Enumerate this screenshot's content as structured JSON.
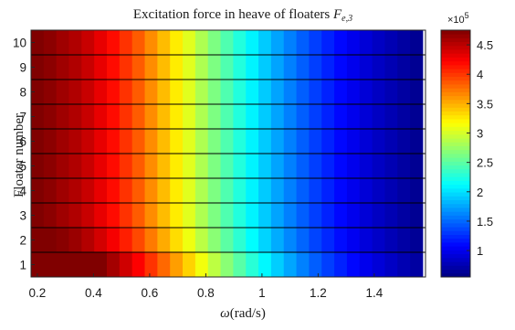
{
  "chart_data": {
    "type": "heatmap",
    "title": "Excitation force in heave of floaters",
    "title_symbol": "F",
    "title_symbol_sub": "e,3",
    "xlabel_symbol": "ω",
    "xlabel_unit": "(rad/s)",
    "ylabel": "Floater number",
    "x_range": [
      0.1775,
      1.5825
    ],
    "x_ticks": [
      0.2,
      0.4,
      0.6,
      0.8,
      1,
      1.2,
      1.4
    ],
    "x_tick_labels": [
      "0.2",
      "0.4",
      "0.6",
      "0.8",
      "1",
      "1.2",
      "1.4"
    ],
    "y_categories": [
      "1",
      "2",
      "3",
      "4",
      "5",
      "6",
      "7",
      "8",
      "9",
      "10"
    ],
    "omega_start": 0.2,
    "omega_step": 0.045,
    "omega_count": 31,
    "colorbar": {
      "colormap": "jet",
      "range": [
        0.55,
        4.75
      ],
      "ticks": [
        1,
        1.5,
        2,
        2.5,
        3,
        3.5,
        4,
        4.5
      ],
      "tick_labels": [
        "1",
        "1.5",
        "2",
        "2.5",
        "3",
        "3.5",
        "4",
        "4.5"
      ],
      "scale_prefix": "×10",
      "scale_exponent": "5"
    },
    "force_vs_omega_unit_1e5": [
      4.75,
      4.7,
      4.62,
      4.55,
      4.45,
      4.32,
      4.18,
      4.02,
      3.85,
      3.65,
      3.45,
      3.25,
      3.05,
      2.84,
      2.64,
      2.45,
      2.26,
      2.08,
      1.91,
      1.75,
      1.6,
      1.46,
      1.33,
      1.21,
      1.1,
      1.0,
      0.91,
      0.83,
      0.76,
      0.69,
      0.63
    ],
    "series": [
      {
        "name": "1",
        "scale": 1.1
      },
      {
        "name": "2",
        "scale": 1.02
      },
      {
        "name": "3",
        "scale": 1.0
      },
      {
        "name": "4",
        "scale": 1.0
      },
      {
        "name": "5",
        "scale": 1.0
      },
      {
        "name": "6",
        "scale": 1.0
      },
      {
        "name": "7",
        "scale": 1.0
      },
      {
        "name": "8",
        "scale": 1.0
      },
      {
        "name": "9",
        "scale": 1.0
      },
      {
        "name": "10",
        "scale": 1.0
      }
    ],
    "grid": false
  }
}
